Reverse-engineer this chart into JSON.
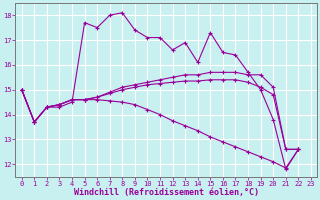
{
  "xlabel": "Windchill (Refroidissement éolien,°C)",
  "bg_color": "#c8f0f0",
  "grid_color": "#ffffff",
  "line_color": "#990099",
  "marker": "+",
  "xlim": [
    -0.5,
    23.5
  ],
  "ylim": [
    11.5,
    18.5
  ],
  "yticks": [
    12,
    13,
    14,
    15,
    16,
    17,
    18
  ],
  "xticks": [
    0,
    1,
    2,
    3,
    4,
    5,
    6,
    7,
    8,
    9,
    10,
    11,
    12,
    13,
    14,
    15,
    16,
    17,
    18,
    19,
    20,
    21,
    22,
    23
  ],
  "series": [
    [
      15.0,
      13.7,
      14.3,
      14.3,
      14.5,
      17.7,
      17.5,
      18.0,
      18.1,
      17.4,
      17.1,
      17.1,
      16.6,
      16.9,
      16.1,
      17.3,
      16.5,
      16.4,
      15.7,
      15.0,
      13.8,
      11.8,
      12.6
    ],
    [
      15.0,
      13.7,
      14.3,
      14.4,
      14.6,
      14.6,
      14.7,
      14.9,
      15.1,
      15.2,
      15.3,
      15.4,
      15.5,
      15.6,
      15.6,
      15.7,
      15.7,
      15.7,
      15.6,
      15.6,
      15.1,
      12.6,
      12.6
    ],
    [
      15.0,
      13.7,
      14.3,
      14.4,
      14.6,
      14.6,
      14.7,
      14.85,
      15.0,
      15.1,
      15.2,
      15.25,
      15.3,
      15.35,
      15.35,
      15.4,
      15.4,
      15.4,
      15.3,
      15.1,
      14.8,
      12.6,
      12.6
    ],
    [
      15.0,
      13.7,
      14.3,
      14.4,
      14.6,
      14.6,
      14.6,
      14.55,
      14.5,
      14.4,
      14.2,
      14.0,
      13.75,
      13.55,
      13.35,
      13.1,
      12.9,
      12.7,
      12.5,
      12.3,
      12.1,
      11.85,
      12.6
    ]
  ],
  "xlabel_fontsize": 6,
  "tick_fontsize": 5,
  "xlabel_color": "#990099",
  "spine_color": "#777777"
}
